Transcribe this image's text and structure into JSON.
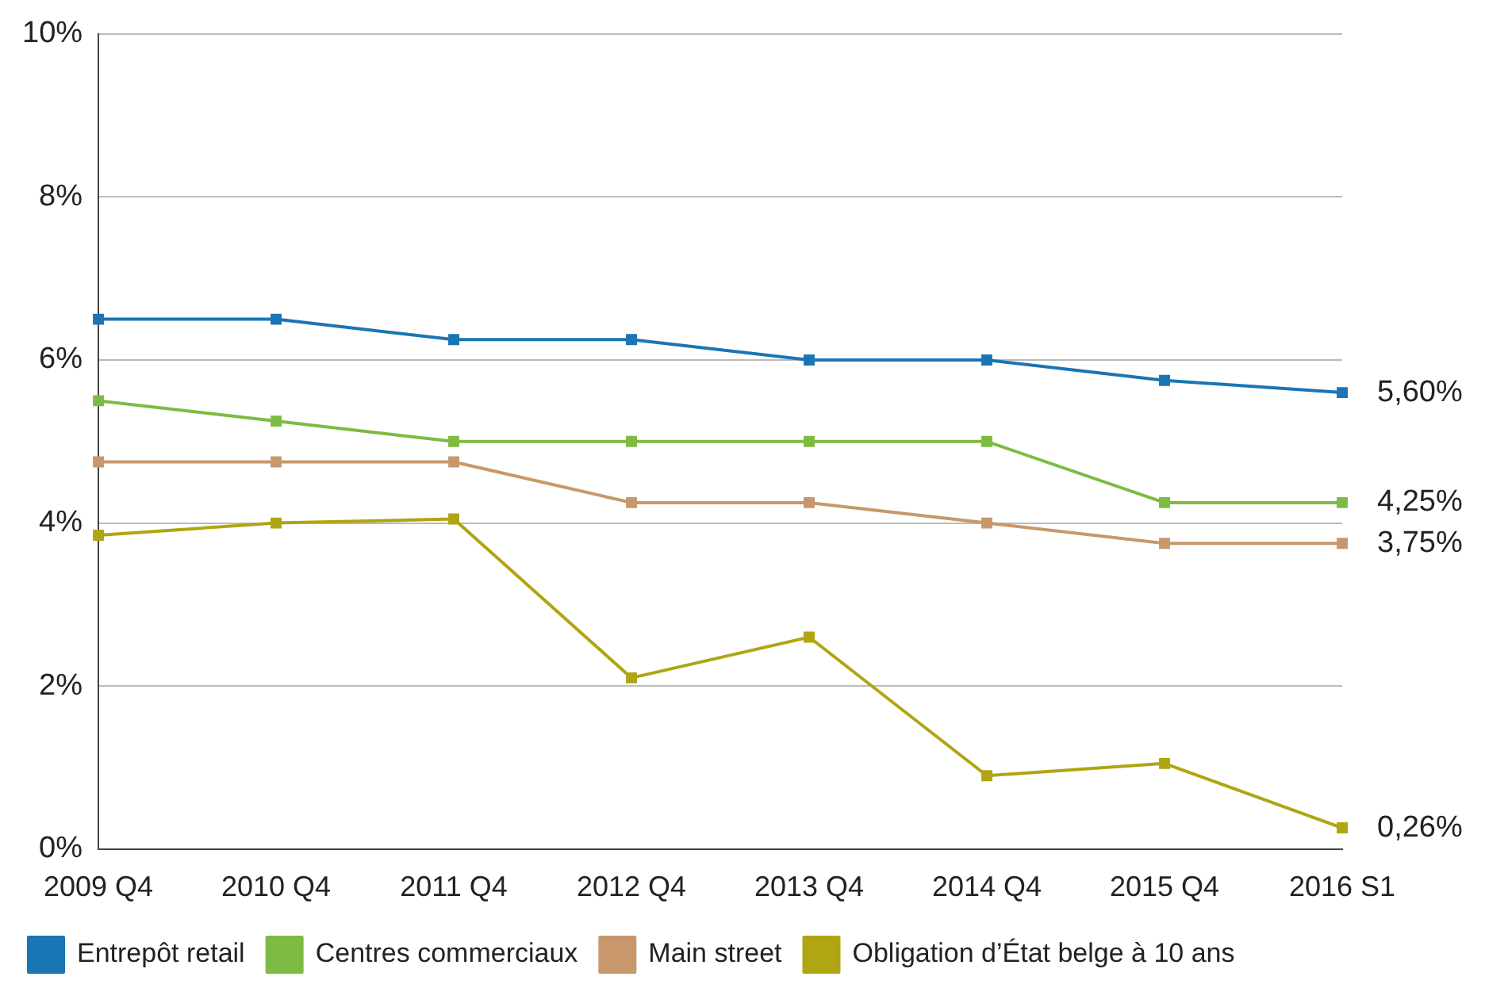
{
  "chart_data": {
    "type": "line",
    "categories": [
      "2009 Q4",
      "2010 Q4",
      "2011 Q4",
      "2012 Q4",
      "2013 Q4",
      "2014 Q4",
      "2015 Q4",
      "2016 S1"
    ],
    "series": [
      {
        "name": "Entrepôt retail",
        "color": "#1a75b5",
        "values": [
          6.5,
          6.5,
          6.25,
          6.25,
          6.0,
          6.0,
          5.75,
          5.6
        ],
        "value_labels": [
          null,
          null,
          null,
          null,
          null,
          null,
          null,
          "5,60%"
        ]
      },
      {
        "name": "Centres commerciaux",
        "color": "#7dbb42",
        "values": [
          5.5,
          5.25,
          5.0,
          5.0,
          5.0,
          5.0,
          4.25,
          4.25
        ],
        "value_labels": [
          null,
          null,
          null,
          null,
          null,
          null,
          null,
          "4,25%"
        ]
      },
      {
        "name": "Main street",
        "color": "#c8976b",
        "values": [
          4.75,
          4.75,
          4.75,
          4.25,
          4.25,
          4.0,
          3.75,
          3.75
        ],
        "value_labels": [
          null,
          null,
          null,
          null,
          null,
          null,
          null,
          "3,75%"
        ]
      },
      {
        "name": "Obligation d’État belge à 10 ans",
        "color": "#b0a512",
        "values": [
          3.85,
          4.0,
          4.05,
          2.1,
          2.6,
          0.9,
          1.05,
          0.26
        ],
        "value_labels": [
          null,
          null,
          null,
          null,
          null,
          null,
          null,
          "0,26%"
        ]
      }
    ],
    "ylim": [
      0,
      10
    ],
    "yticks": [
      {
        "value": 0,
        "label": "0%"
      },
      {
        "value": 2,
        "label": "2%"
      },
      {
        "value": 4,
        "label": "4%"
      },
      {
        "value": 6,
        "label": "6%"
      },
      {
        "value": 8,
        "label": "8%"
      },
      {
        "value": 10,
        "label": "10%"
      }
    ],
    "grid": "y",
    "legend": "bottom",
    "marker": "square",
    "line_style": "solid"
  }
}
